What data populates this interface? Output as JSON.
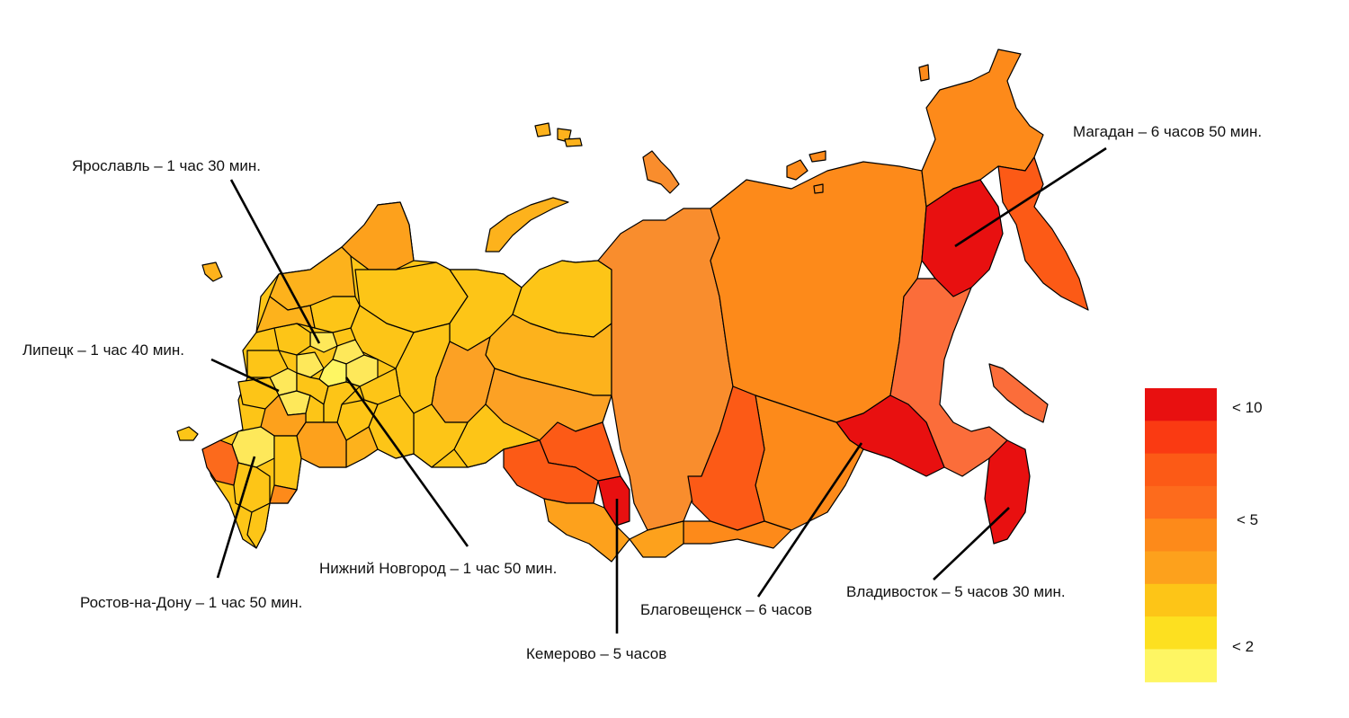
{
  "labels": {
    "yaroslavl": "Ярославль – 1 час 30 мин.",
    "lipetsk": "Липецк – 1 час 40 мин.",
    "nizhny": "Нижний Новгород – 1 час 50 мин.",
    "rostov": "Ростов-на-Дону – 1 час 50 мин.",
    "kemerovo": "Кемерово – 5 часов",
    "blagoveshchensk": "Благовещенск – 6 часов",
    "vladivostok": "Владивосток  – 5 часов 30 мин.",
    "magadan": "Магадан – 6 часов 50 мин."
  },
  "legend": {
    "colors": [
      "#e81010",
      "#fa3a12",
      "#fc5a16",
      "#fd6b1c",
      "#fd8a1a",
      "#fda11c",
      "#fdc517",
      "#fde020",
      "#fef663"
    ],
    "label_top": "< 10",
    "label_mid": "< 5",
    "label_bottom": "< 2"
  },
  "palette": {
    "lightest": "#fef663",
    "light_yellow": "#fee85a",
    "yellow": "#fdc517",
    "amber": "#fdb21c",
    "orange_light": "#fca124",
    "orange": "#fd8a1a",
    "orange_mid": "#f98d2d",
    "orange_deep": "#fc6a1c",
    "red_orange": "#fc5a16",
    "salmon": "#fb6d3a",
    "red": "#e81010"
  }
}
